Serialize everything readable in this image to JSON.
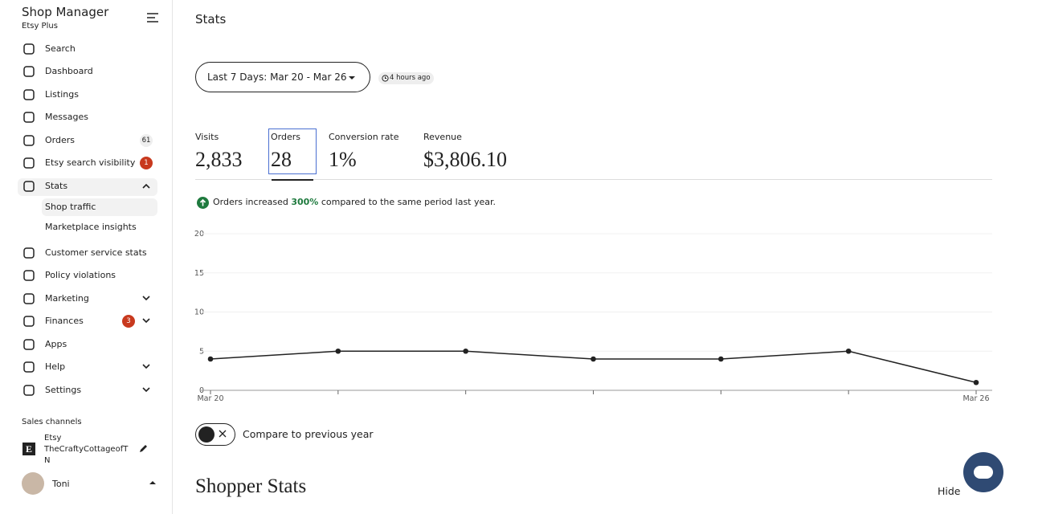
{
  "sidebar": {
    "title": "Shop Manager",
    "subtitle": "Etsy Plus",
    "nav": [
      {
        "label": "Search"
      },
      {
        "label": "Dashboard"
      },
      {
        "label": "Listings"
      },
      {
        "label": "Messages"
      },
      {
        "label": "Orders",
        "badge": 61
      },
      {
        "label": "Etsy search visibility",
        "badge": 1
      },
      {
        "label": "Stats"
      }
    ],
    "stats_sub": [
      "Shop traffic",
      "Marketplace insights"
    ],
    "nav2": [
      {
        "label": "Customer service stats"
      },
      {
        "label": "Policy violations"
      },
      {
        "label": "Marketing"
      },
      {
        "label": "Finances",
        "badge": 3
      },
      {
        "label": "Apps"
      },
      {
        "label": "Help"
      },
      {
        "label": "Settings"
      }
    ],
    "sales_channels": "Sales channels",
    "channel": {
      "platform": "Etsy",
      "shop": "TheCraftyCottageofTN"
    },
    "user": "Toni"
  },
  "main": {
    "title": "Stats",
    "date_range": "Last 7 Days: Mar 20 - Mar 26",
    "updated": "4 hours ago",
    "metrics": [
      {
        "label": "Visits",
        "value": "2,833"
      },
      {
        "label": "Orders",
        "value": "28"
      },
      {
        "label": "Conversion rate",
        "value": "1%"
      },
      {
        "label": "Revenue",
        "value": "$3,806.10"
      }
    ],
    "notice": {
      "before": "Orders increased",
      "highlight": "300%",
      "after": "compared to the same period last year."
    },
    "toggle_label": "Compare to previous year",
    "section_title": "Shopper Stats",
    "hide": "Hide"
  },
  "chart_data": {
    "type": "line",
    "categories": [
      "Mar 20",
      null,
      null,
      null,
      null,
      null,
      "Mar 26"
    ],
    "values": [
      4,
      5,
      5,
      4,
      4,
      5,
      1
    ],
    "color": "#222222",
    "ylim": [
      0,
      20
    ],
    "yticks": [
      0,
      5,
      10,
      15,
      20
    ],
    "grid": true
  }
}
